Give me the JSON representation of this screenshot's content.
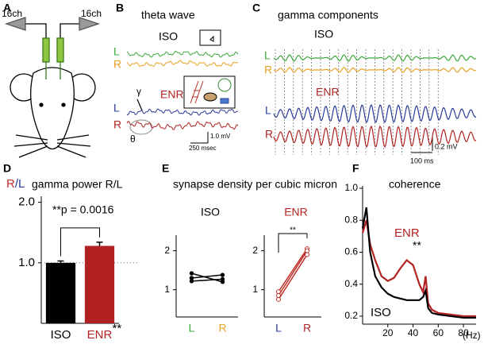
{
  "panels": {
    "a": {
      "label": "A",
      "left_channels": "16ch",
      "right_channels": "16ch"
    },
    "b": {
      "label": "B",
      "title": "theta wave",
      "iso": "ISO",
      "enr": "ENR",
      "iso_left": "L",
      "iso_right": "R",
      "enr_left": "L",
      "enr_right": "R",
      "gamma_symbol": "γ",
      "theta_symbol": "θ",
      "voltage_scale": "1.0 mV",
      "time_scale": "250 msec"
    },
    "c": {
      "label": "C",
      "title": "gamma components",
      "iso": "ISO",
      "enr": "ENR",
      "iso_left": "L",
      "iso_right": "R",
      "enr_left": "L",
      "enr_right": "R",
      "voltage_scale": "0.2 mV",
      "time_scale": "100 ms"
    }
  },
  "chart_data": [
    {
      "type": "bar",
      "panel": "D",
      "title": "gamma power R/L",
      "ylabel": [
        "R",
        "/L"
      ],
      "ylabel_colors": [
        "#c0302a",
        "#2a3a9a"
      ],
      "categories": [
        "ISO",
        "ENR"
      ],
      "values": [
        1.0,
        1.28
      ],
      "errors": [
        0.03,
        0.06
      ],
      "colors": [
        "#000000",
        "#b22222"
      ],
      "category_colors": [
        "#000000",
        "#b22222"
      ],
      "category_marks": [
        null,
        "**"
      ],
      "annotation": "**p = 0.0016",
      "reference_line": 1,
      "ylim": [
        0,
        2.1
      ],
      "yticks": [
        {
          "value": 1,
          "label": "1.0"
        },
        {
          "value": 2,
          "label": "2.0"
        }
      ]
    },
    {
      "type": "paired",
      "panel": "E",
      "title": "synapse density per cubic micron",
      "subtitle": "ISO",
      "subtitle_color": "#000000",
      "categories": [
        "L",
        "R"
      ],
      "category_colors": [
        "#3aa83a",
        "#e8a020"
      ],
      "color": "#000000",
      "marker": "filled",
      "series": [
        {
          "values": [
            1.42,
            1.2
          ]
        },
        {
          "values": [
            1.3,
            1.38
          ]
        },
        {
          "values": [
            1.22,
            1.27
          ]
        }
      ],
      "ylim": [
        0.3,
        2.4
      ],
      "yticks": [
        1,
        2
      ]
    },
    {
      "type": "paired",
      "subtitle": "ENR",
      "subtitle_color": "#b22222",
      "categories": [
        "L",
        "R"
      ],
      "category_colors": [
        "#2a3a9a",
        "#b22222"
      ],
      "color": "#c0302a",
      "marker": "open",
      "series": [
        {
          "values": [
            0.95,
            2.05
          ]
        },
        {
          "values": [
            0.85,
            2.0
          ]
        },
        {
          "values": [
            0.75,
            1.9
          ]
        }
      ],
      "annotation": "**",
      "ylim": [
        0.3,
        2.4
      ],
      "yticks": [
        1,
        2
      ]
    },
    {
      "type": "line",
      "panel": "F",
      "title": "coherence",
      "xlabel": "(Hz)",
      "x": [
        0,
        3,
        6,
        10,
        15,
        20,
        25,
        30,
        35,
        40,
        45,
        48,
        50,
        52,
        55,
        60,
        70,
        80,
        90
      ],
      "series": [
        {
          "name": "ENR",
          "color": "#b22222",
          "values": [
            0.72,
            0.8,
            0.65,
            0.55,
            0.45,
            0.42,
            0.44,
            0.5,
            0.55,
            0.52,
            0.4,
            0.35,
            0.45,
            0.28,
            0.24,
            0.22,
            0.21,
            0.2,
            0.2
          ]
        },
        {
          "name": "ISO",
          "color": "#000000",
          "values": [
            0.75,
            0.88,
            0.6,
            0.45,
            0.38,
            0.34,
            0.32,
            0.31,
            0.3,
            0.3,
            0.3,
            0.32,
            0.36,
            0.25,
            0.22,
            0.21,
            0.2,
            0.19,
            0.19
          ]
        }
      ],
      "annotation": "**",
      "xlim": [
        0,
        90
      ],
      "xticks": [
        20,
        40,
        60,
        80
      ],
      "ylim": [
        0.15,
        1.0
      ],
      "yticks": [
        {
          "value": 0.2,
          "label": "0.2"
        },
        {
          "value": 0.4,
          "label": "0.4"
        },
        {
          "value": 0.6,
          "label": "0.6"
        },
        {
          "value": 0.8,
          "label": "0.8"
        },
        {
          "value": 1.0,
          "label": "1.0"
        }
      ]
    }
  ]
}
